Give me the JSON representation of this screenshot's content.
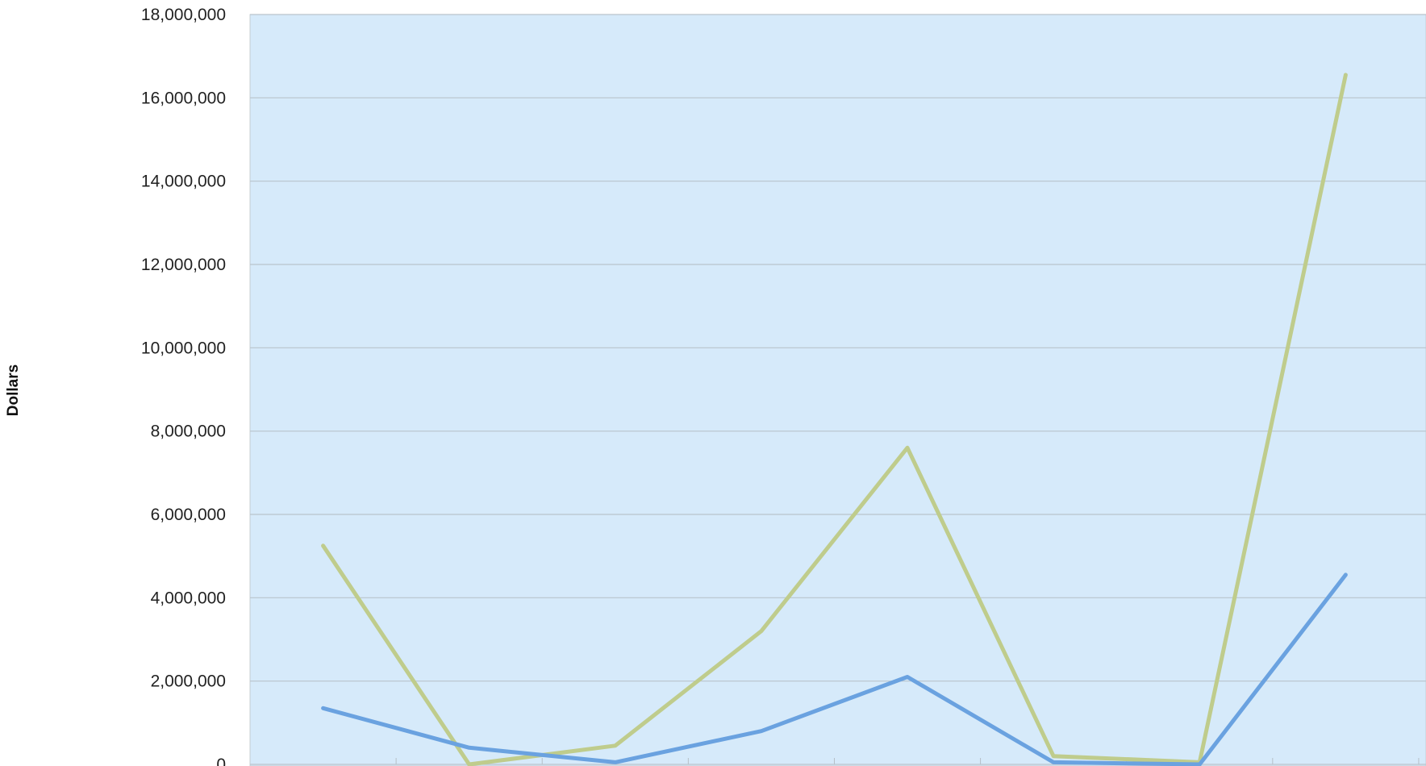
{
  "chart_data": {
    "type": "line",
    "title": "",
    "xlabel": "",
    "ylabel": "Dollars",
    "ylim": [
      0,
      18000000
    ],
    "ytick_labels": [
      "0",
      "2,000,000",
      "4,000,000",
      "6,000,000",
      "8,000,000",
      "10,000,000",
      "12,000,000",
      "14,000,000",
      "16,000,000",
      "18,000,000"
    ],
    "ytick_values": [
      0,
      2000000,
      4000000,
      6000000,
      8000000,
      10000000,
      12000000,
      14000000,
      16000000,
      18000000
    ],
    "point_count": 8,
    "grid": true,
    "legend": "none",
    "series": [
      {
        "color": "#bfcc8c",
        "values": [
          5250000,
          0,
          450000,
          3200000,
          7600000,
          200000,
          50000,
          16550000
        ]
      },
      {
        "color": "#6aa2e0",
        "values": [
          1350000,
          400000,
          50000,
          800000,
          2100000,
          50000,
          0,
          4550000
        ]
      }
    ],
    "colors": {
      "plot_background": "#d6eafa",
      "gridline": "#b9c4cc"
    }
  }
}
